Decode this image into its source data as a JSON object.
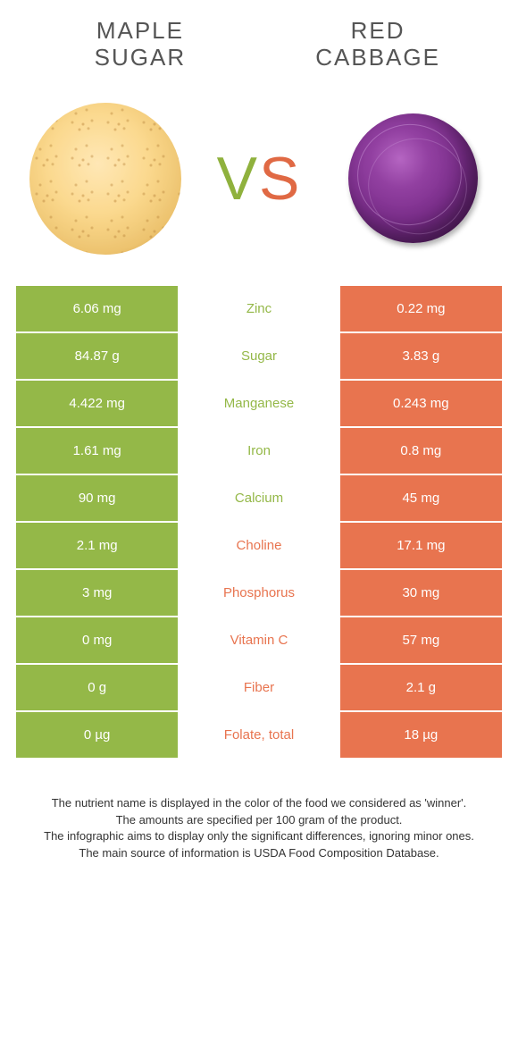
{
  "colors": {
    "green": "#94b848",
    "orange": "#e8744f",
    "text_gray": "#555555"
  },
  "food_left": {
    "title_line1": "MAPLE",
    "title_line2": "SUGAR"
  },
  "food_right": {
    "title_line1": "RED",
    "title_line2": "CABBAGE"
  },
  "vs": {
    "v": "V",
    "s": "S"
  },
  "rows": [
    {
      "left": "6.06 mg",
      "name": "Zinc",
      "right": "0.22 mg",
      "winner": "left"
    },
    {
      "left": "84.87 g",
      "name": "Sugar",
      "right": "3.83 g",
      "winner": "left"
    },
    {
      "left": "4.422 mg",
      "name": "Manganese",
      "right": "0.243 mg",
      "winner": "left"
    },
    {
      "left": "1.61 mg",
      "name": "Iron",
      "right": "0.8 mg",
      "winner": "left"
    },
    {
      "left": "90 mg",
      "name": "Calcium",
      "right": "45 mg",
      "winner": "left"
    },
    {
      "left": "2.1 mg",
      "name": "Choline",
      "right": "17.1 mg",
      "winner": "right"
    },
    {
      "left": "3 mg",
      "name": "Phosphorus",
      "right": "30 mg",
      "winner": "right"
    },
    {
      "left": "0 mg",
      "name": "Vitamin C",
      "right": "57 mg",
      "winner": "right"
    },
    {
      "left": "0 g",
      "name": "Fiber",
      "right": "2.1 g",
      "winner": "right"
    },
    {
      "left": "0 µg",
      "name": "Folate, total",
      "right": "18 µg",
      "winner": "right"
    }
  ],
  "footer": {
    "line1": "The nutrient name is displayed in the color of the food we considered as 'winner'.",
    "line2": "The amounts are specified per 100 gram of the product.",
    "line3": "The infographic aims to display only the significant differences, ignoring minor ones.",
    "line4": "The main source of information is USDA Food Composition Database."
  }
}
